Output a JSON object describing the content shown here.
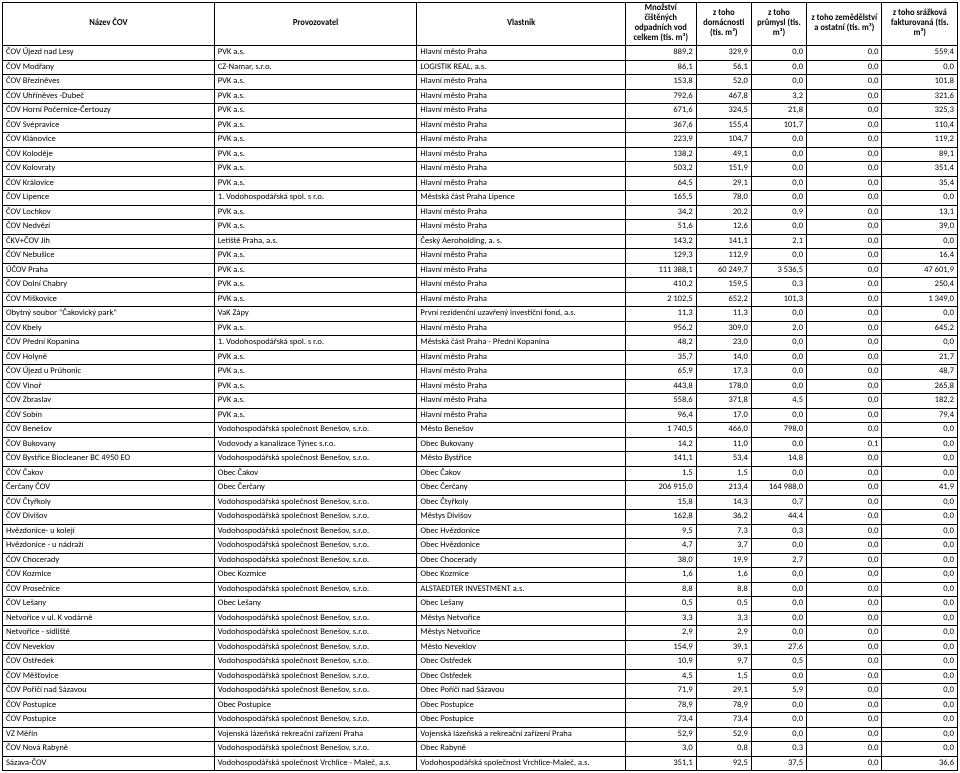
{
  "columns": [
    "Název ČOV",
    "Provozovatel",
    "Vlastník",
    "Množství čištěných odpadních vod celkem (tis. m³)",
    "z toho domácnosti (tis. m³)",
    "z toho průmysl (tis. m³)",
    "z toho zemědělství a ostatní (tis. m³)",
    "z toho srážková fakturovaná (tis. m³)"
  ],
  "rows": [
    [
      "ČOV Újezd nad Lesy",
      "PVK a.s.",
      "Hlavní město Praha",
      "889,2",
      "329,9",
      "0,0",
      "0,0",
      "559,4"
    ],
    [
      "ČOV Modřany",
      "CZ-Namar, s.r.o.",
      "LOGISTIK REAL, a.s.",
      "86,1",
      "56,1",
      "0,0",
      "0,0",
      "0,0"
    ],
    [
      "ČOV Březiněves",
      "PVK a.s.",
      "Hlavní město Praha",
      "153,8",
      "52,0",
      "0,0",
      "0,0",
      "101,8"
    ],
    [
      "ČOV Uhříněves -Dubeč",
      "PVK a.s.",
      "Hlavní město Praha",
      "792,6",
      "467,8",
      "3,2",
      "0,0",
      "321,6"
    ],
    [
      "ČOV Horní Počernice-Čertouzy",
      "PVK a.s.",
      "Hlavní město Praha",
      "671,6",
      "324,5",
      "21,8",
      "0,0",
      "325,3"
    ],
    [
      "ČOV Svépravice",
      "PVK a.s.",
      "Hlavní město Praha",
      "367,6",
      "155,4",
      "101,7",
      "0,0",
      "110,4"
    ],
    [
      "ČOV Klánovice",
      "PVK a.s.",
      "Hlavní město Praha",
      "223,9",
      "104,7",
      "0,0",
      "0,0",
      "119,2"
    ],
    [
      "ČOV Koloděje",
      "PVK a.s.",
      "Hlavní město Praha",
      "138,2",
      "49,1",
      "0,0",
      "0,0",
      "89,1"
    ],
    [
      "ČOV Kolovraty",
      "PVK a.s.",
      "Hlavní město Praha",
      "503,2",
      "151,9",
      "0,0",
      "0,0",
      "351,4"
    ],
    [
      "ČOV Královice",
      "PVK a.s.",
      "Hlavní město Praha",
      "64,5",
      "29,1",
      "0,0",
      "0,0",
      "35,4"
    ],
    [
      "ČOV Lipence",
      "1. Vodohospodářská spol. s r.o.",
      "Městská část Praha Lipence",
      "165,5",
      "78,0",
      "0,0",
      "0,0",
      "0,0"
    ],
    [
      "ČOV Lochkov",
      "PVK a.s.",
      "Hlavní město Praha",
      "34,2",
      "20,2",
      "0,9",
      "0,0",
      "13,1"
    ],
    [
      "ČOV Nedvězí",
      "PVK a.s.",
      "Hlavní město Praha",
      "51,6",
      "12,6",
      "0,0",
      "0,0",
      "39,0"
    ],
    [
      "ČKV+ČOV Jih",
      "Letiště Praha, a.s.",
      "Český Aeroholding, a. s.",
      "143,2",
      "141,1",
      "2,1",
      "0,0",
      "0,0"
    ],
    [
      "ČOV Nebušice",
      "PVK a.s.",
      "Hlavní město Praha",
      "129,3",
      "112,9",
      "0,0",
      "0,0",
      "16,4"
    ],
    [
      "ÚČOV Praha",
      "PVK a.s.",
      "Hlavní město Praha",
      "111 388,1",
      "60 249,7",
      "3 536,5",
      "0,0",
      "47 601,9"
    ],
    [
      "ČOV Dolní Chabry",
      "PVK a.s.",
      "Hlavní město Praha",
      "410,2",
      "159,5",
      "0,3",
      "0,0",
      "250,4"
    ],
    [
      "ČOV Miškovice",
      "PVK a.s.",
      "Hlavní město Praha",
      "2 102,5",
      "652,2",
      "101,3",
      "0,0",
      "1 349,0"
    ],
    [
      "Obytný soubor \"Čakovický park\"",
      "VaK Zápy",
      "První rezidenční uzavřený investiční fond, a.s.",
      "11,3",
      "11,3",
      "0,0",
      "0,0",
      "0,0"
    ],
    [
      "ČOV Kbely",
      "PVK a.s.",
      "Hlavní město Praha",
      "956,2",
      "309,0",
      "2,0",
      "0,0",
      "645,2"
    ],
    [
      "ČOV Přední Kopanina",
      "1. Vodohospodářská spol. s r.o.",
      "Městská část Praha - Přední Kopanina",
      "48,2",
      "23,0",
      "0,0",
      "0,0",
      "0,0"
    ],
    [
      "ČOV Holyně",
      "PVK a.s.",
      "Hlavní město Praha",
      "35,7",
      "14,0",
      "0,0",
      "0,0",
      "21,7"
    ],
    [
      "ČOV Újezd u Průhonic",
      "PVK a.s.",
      "Hlavní město Praha",
      "65,9",
      "17,3",
      "0,0",
      "0,0",
      "48,7"
    ],
    [
      "ČOV Vinoř",
      "PVK a.s.",
      "Hlavní město Praha",
      "443,8",
      "178,0",
      "0,0",
      "0,0",
      "265,8"
    ],
    [
      "ČOV Zbraslav",
      "PVK a.s.",
      "Hlavní město Praha",
      "558,6",
      "371,8",
      "4,5",
      "0,0",
      "182,2"
    ],
    [
      "ČOV Sobín",
      "PVK a.s.",
      "Hlavní město Praha",
      "96,4",
      "17,0",
      "0,0",
      "0,0",
      "79,4"
    ],
    [
      "ČOV Benešov",
      "Vodohospodářská společnost Benešov, s.r.o.",
      "Město Benešov",
      "1 740,5",
      "466,0",
      "798,0",
      "0,0",
      "0,0"
    ],
    [
      "ČOV Bukovany",
      "Vodovody a kanalizace Týnec s.r.o.",
      "Obec Bukovany",
      "14,2",
      "11,0",
      "0,0",
      "0,1",
      "0,0"
    ],
    [
      "ČOV Bystřice Biocleaner BC 4950 EO",
      "Vodohospodářská společnost Benešov, s.r.o.",
      "Město Bystřice",
      "141,1",
      "53,4",
      "14,8",
      "0,0",
      "0,0"
    ],
    [
      "ČOV Čakov",
      "Obec Čakov",
      "Obec Čakov",
      "1,5",
      "1,5",
      "0,0",
      "0,0",
      "0,0"
    ],
    [
      "Čerčany ČOV",
      "Obec Čerčany",
      "Obec Čerčany",
      "206 915,0",
      "213,4",
      "164 988,0",
      "0,0",
      "41,9"
    ],
    [
      "ČOV Čtyřkoly",
      "Vodohospodářská společnost Benešov, s.r.o.",
      "Obec Čtyřkoly",
      "15,8",
      "14,3",
      "0,7",
      "0,0",
      "0,0"
    ],
    [
      "ČOV Divišov",
      "Vodohospodářská společnost Benešov, s.r.o.",
      "Městys Divišov",
      "162,8",
      "36,2",
      "44,4",
      "0,0",
      "0,0"
    ],
    [
      "Hvězdonice- u kolejí",
      "Vodohospodářská společnost Benešov, s.r.o.",
      "Obec Hvězdonice",
      "9,5",
      "7,3",
      "0,3",
      "0,0",
      "0,0"
    ],
    [
      "Hvězdonice - u nádraží",
      "Vodohospodářská společnost Benešov, s.r.o.",
      "Obec Hvězdonice",
      "4,7",
      "3,7",
      "0,0",
      "0,0",
      "0,0"
    ],
    [
      "ČOV Chocerady",
      "Vodohospodářská společnost Benešov, s.r.o.",
      "Obec Chocerady",
      "38,0",
      "19,9",
      "2,7",
      "0,0",
      "0,0"
    ],
    [
      "ČOV Kozmice",
      "Obec Kozmice",
      "Obec Kozmice",
      "1,6",
      "1,6",
      "0,0",
      "0,0",
      "0,0"
    ],
    [
      "ČOV Prosečnice",
      "Vodohospodářská společnost Benešov, s.r.o.",
      "ALSTAEDTER INVESTMENT a.s.",
      "8,8",
      "8,8",
      "0,0",
      "0,0",
      "0,0"
    ],
    [
      "ČOV Lešany",
      "Obec Lešany",
      "Obec Lešany",
      "0,5",
      "0,5",
      "0,0",
      "0,0",
      "0,0"
    ],
    [
      "Netvořice v ul. K vodárně",
      "Vodohospodářská společnost Benešov, s.r.o.",
      "Městys  Netvořice",
      "3,3",
      "3,3",
      "0,0",
      "0,0",
      "0,0"
    ],
    [
      "Netvořice - sídliště",
      "Vodohospodářská společnost Benešov, s.r.o.",
      "Městys  Netvořice",
      "2,9",
      "2,9",
      "0,0",
      "0,0",
      "0,0"
    ],
    [
      "ČOV Neveklov",
      "Vodohospodářská společnost Benešov, s.r.o.",
      "Město Neveklov",
      "154,9",
      "39,1",
      "27,6",
      "0,0",
      "0,0"
    ],
    [
      "ČOV Ostředek",
      "Vodohospodářská společnost Benešov, s.r.o.",
      "Obec Ostředek",
      "10,9",
      "9,7",
      "0,5",
      "0,0",
      "0,0"
    ],
    [
      "ČOV  Měšťovice",
      "Vodohospodářská společnost Benešov, s.r.o.",
      "Obec Ostředek",
      "4,5",
      "1,5",
      "0,0",
      "0,0",
      "0,0"
    ],
    [
      "ČOV Poříčí nad Sázavou",
      "Vodohospodářská společnost Benešov, s.r.o.",
      "Obec Poříčí nad Sázavou",
      "71,9",
      "29,1",
      "5,9",
      "0,0",
      "0,0"
    ],
    [
      "ČOV Postupice",
      "Obec Postupice",
      "Obec Postupice",
      "78,9",
      "78,9",
      "0,0",
      "0,0",
      "0,0"
    ],
    [
      "ČOV Postupice",
      "Vodohospodářská společnost Benešov, s.r.o.",
      "Obec Postupice",
      "73,4",
      "73,4",
      "0,0",
      "0,0",
      "0,0"
    ],
    [
      "VZ Měřín",
      "Vojenská lázeňská rekreační zařízení Praha",
      "Vojenská lázeňská a rekreační zařízení Praha",
      "52,9",
      "52,9",
      "0,0",
      "0,0",
      "0,0"
    ],
    [
      "ČOV Nová Rabyně",
      "Vodohospodářská společnost Benešov, s.r.o.",
      "Obec Rabyně",
      "3,0",
      "0,8",
      "0,3",
      "0,0",
      "0,0"
    ],
    [
      "Sázava-ČOV",
      "Vodohospodářská společnost Vrchlice - Maleč, a.s.",
      "Vodohospodářská společnost Vrchlice-Maleč, a.s.",
      "351,1",
      "92,5",
      "37,5",
      "0,0",
      "36,6"
    ]
  ]
}
